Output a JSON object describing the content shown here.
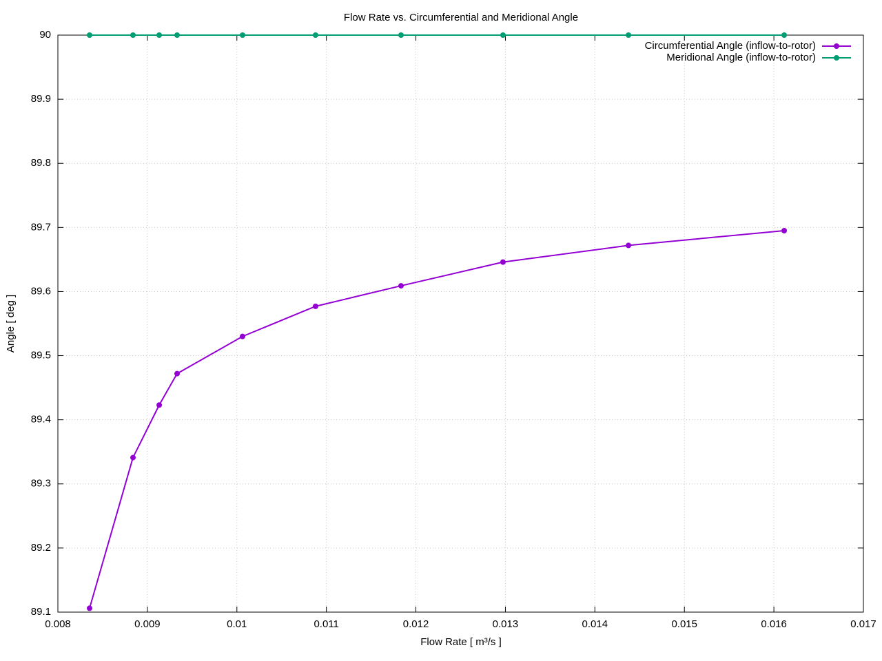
{
  "chart_data": {
    "type": "line",
    "title": "Flow Rate vs. Circumferential and Meridional Angle",
    "x_label": "Flow Rate [ m³/s ]",
    "y_label": "Angle [ deg ]",
    "x": [
      0.008354,
      0.008839,
      0.009132,
      0.009332,
      0.010063,
      0.010879,
      0.011834,
      0.012973,
      0.014375,
      0.016115
    ],
    "series": [
      {
        "name": "Circumferential Angle (inflow-to-rotor)",
        "color": "#9400d3",
        "values": [
          89.106,
          89.341,
          89.423,
          89.472,
          89.53,
          89.577,
          89.609,
          89.646,
          89.672,
          89.695
        ]
      },
      {
        "name": "Meridional Angle (inflow-to-rotor)",
        "color": "#009e73",
        "values": [
          90,
          90,
          90,
          90,
          90,
          90,
          90,
          90,
          90,
          90
        ]
      }
    ],
    "xlim": [
      0.008,
      0.017
    ],
    "xticks": [
      0.008,
      0.009,
      0.01,
      0.011,
      0.012,
      0.013,
      0.014,
      0.015,
      0.016,
      0.017
    ],
    "ylim": [
      89.1,
      90
    ],
    "yticks": [
      89.1,
      89.2,
      89.3,
      89.4,
      89.5,
      89.6,
      89.7,
      89.8,
      89.9,
      90
    ],
    "grid": true,
    "legend": "top-right"
  }
}
